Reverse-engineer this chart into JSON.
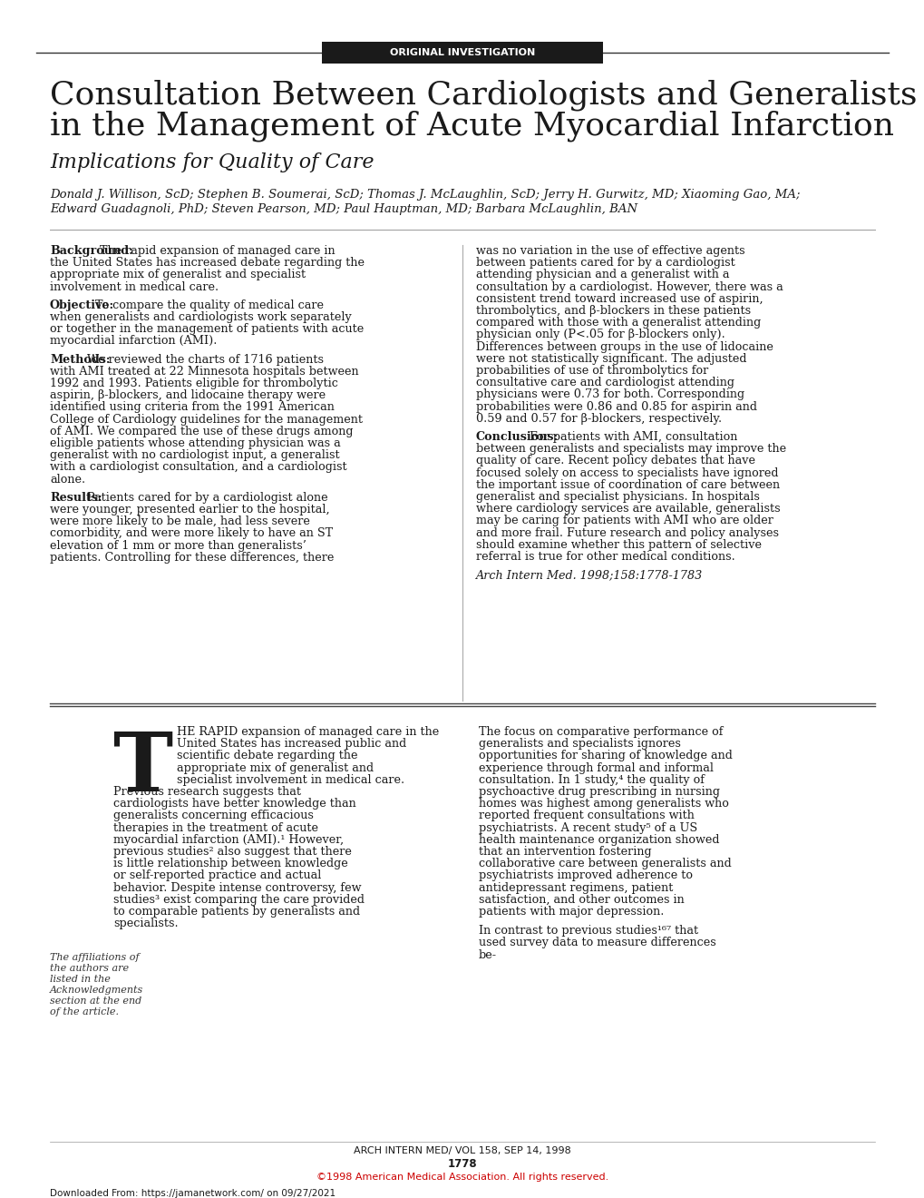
{
  "bg_color": "#ffffff",
  "header_label": "ORIGINAL INVESTIGATION",
  "header_bg": "#1a1a1a",
  "header_text_color": "#ffffff",
  "title_line1": "Consultation Between Cardiologists and Generalists",
  "title_line2": "in the Management of Acute Myocardial Infarction",
  "subtitle": "Implications for Quality of Care",
  "authors_line1": "Donald J. Willison, ScD; Stephen B. Soumerai, ScD; Thomas J. McLaughlin, ScD; Jerry H. Gurwitz, MD; Xiaoming Gao, MA;",
  "authors_line2": "Edward Guadagnoli, PhD; Steven Pearson, MD; Paul Hauptman, MD; Barbara McLaughlin, BAN",
  "abstract_left": [
    {
      "label": "Background:",
      "text": " The rapid expansion of managed care in the United States has increased debate regarding the appropriate mix of generalist and specialist involvement in medical care."
    },
    {
      "label": "Objective:",
      "text": " To compare the quality of medical care when generalists and cardiologists work separately or together in the management of patients with acute myocardial infarction (AMI)."
    },
    {
      "label": "Methods:",
      "text": " We reviewed the charts of 1716 patients with AMI treated at 22 Minnesota hospitals between 1992 and 1993. Patients eligible for thrombolytic aspirin, β-blockers, and lidocaine therapy were identified using criteria from the 1991 American College of Cardiology guidelines for the management of AMI. We compared the use of these drugs among eligible patients whose attending physician was a generalist with no cardiologist input, a generalist with a cardiologist consultation, and a cardiologist alone."
    },
    {
      "label": "Results:",
      "text": " Patients cared for by a cardiologist alone were younger, presented earlier to the hospital, were more likely to be male, had less severe comorbidity, and were more likely to have an ST elevation of 1 mm or more than generalists’ patients. Controlling for these differences, there"
    }
  ],
  "abstract_right": [
    {
      "label": "",
      "text": "was no variation in the use of effective agents between patients cared for by a cardiologist attending physician and a generalist with a consultation by a cardiologist. However, there was a consistent trend toward increased use of aspirin, thrombolytics, and β-blockers in these patients compared with those with a generalist attending physician only (P<.05 for β-blockers only). Differences between groups in the use of lidocaine were not statistically significant. The adjusted probabilities of use of thrombolytics for consultative care and cardiologist attending physicians were 0.73 for both. Corresponding probabilities were 0.86 and 0.85 for aspirin and 0.59 and 0.57 for β-blockers, respectively.",
      "italic": false
    },
    {
      "label": "Conclusions:",
      "text": " For patients with AMI, consultation between generalists and specialists may improve the quality of care. Recent policy debates that have focused solely on access to specialists have ignored the important issue of coordination of care between generalist and specialist physicians. In hospitals where cardiology services are available, generalists may be caring for patients with AMI who are older and more frail. Future research and policy analyses should examine whether this pattern of selective referral is true for other medical conditions.",
      "italic": false
    },
    {
      "label": "",
      "text": "Arch Intern Med. 1998;158:1778-1783",
      "italic": true
    }
  ],
  "body_left_dropcap": "T",
  "body_left_text": "HE RAPID expansion of managed care in the United States has increased public and scientific debate regarding the appropriate mix of generalist and specialist involvement in medical care. Previous research suggests that cardiologists have better knowledge than generalists concerning efficacious therapies in the treatment of acute myocardial infarction (AMI).¹ However, previous studies² also suggest that there is little relationship between knowledge or self-reported practice and actual behavior. Despite intense controversy, few studies³ exist comparing the care provided to comparable patients by generalists and specialists.",
  "body_left_sidebar": "The affiliations of the authors are listed in the Acknowledgments section at the end of the article.",
  "body_right_text1": "The focus on comparative performance of generalists and specialists ignores opportunities for sharing of knowledge and experience through formal and informal consultation. In 1 study,⁴ the quality of psychoactive drug prescribing in nursing homes was highest among generalists who reported frequent consultations with psychiatrists. A recent study⁵ of a US health maintenance organization showed that an intervention fostering collaborative care between generalists and psychiatrists improved adherence to antidepressant regimens, patient satisfaction, and other outcomes in patients with major depression.",
  "body_right_text2": "    In contrast to previous studies¹⁶⁷ that used survey data to measure differences be-",
  "footer_journal": "ARCH INTERN MED/ VOL 158, SEP 14, 1998",
  "footer_page": "1778",
  "footer_copyright": "©1998 American Medical Association. All rights reserved.",
  "footer_download": "Downloaded From: https://jamanetwork.com/ on 09/27/2021"
}
